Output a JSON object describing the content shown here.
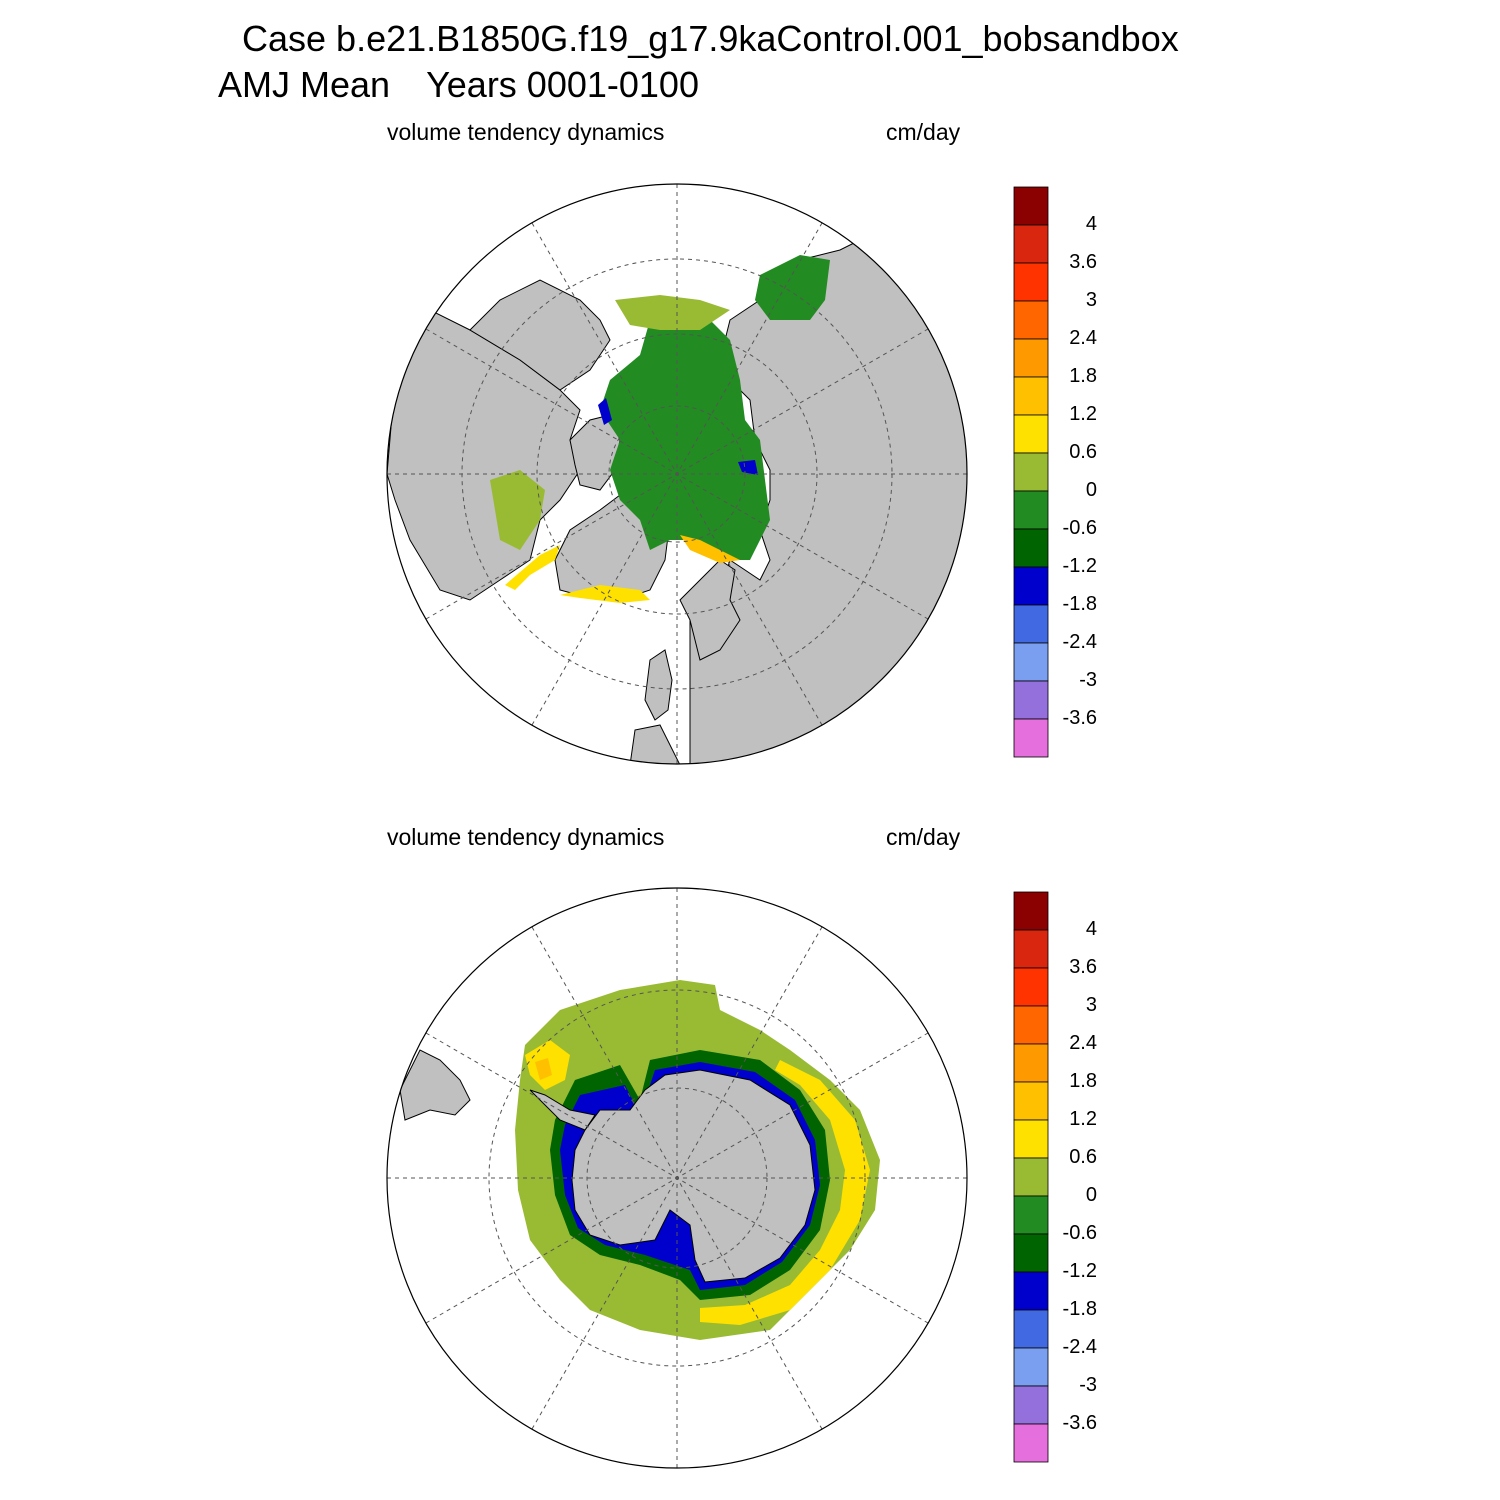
{
  "header": {
    "case_title": "Case b.e21.B1850G.f19_g17.9kaControl.001_bobsandbox",
    "season": "AMJ Mean",
    "years": "Years 0001-0100"
  },
  "panels": [
    {
      "id": "north",
      "variable": "volume tendency dynamics",
      "units": "cm/day",
      "hemisphere": "north-polar-stereographic"
    },
    {
      "id": "south",
      "variable": "volume tendency dynamics",
      "units": "cm/day",
      "hemisphere": "south-polar-stereographic"
    }
  ],
  "colorbar": {
    "labels": [
      "4",
      "3.6",
      "3",
      "2.4",
      "1.8",
      "1.2",
      "0.6",
      "0",
      "-0.6",
      "-1.2",
      "-1.8",
      "-2.4",
      "-3",
      "-3.6"
    ],
    "colors": [
      "#8b0000",
      "#d9260f",
      "#ff3300",
      "#ff6600",
      "#ff9900",
      "#ffc000",
      "#ffe100",
      "#99bb33",
      "#228b22",
      "#006400",
      "#0000cd",
      "#4169e1",
      "#7b9ff0",
      "#9370db",
      "#e56fdc"
    ]
  },
  "map_colors": {
    "land": "#c0c0c0",
    "ocean": "#ffffff",
    "grid": "#555555"
  }
}
